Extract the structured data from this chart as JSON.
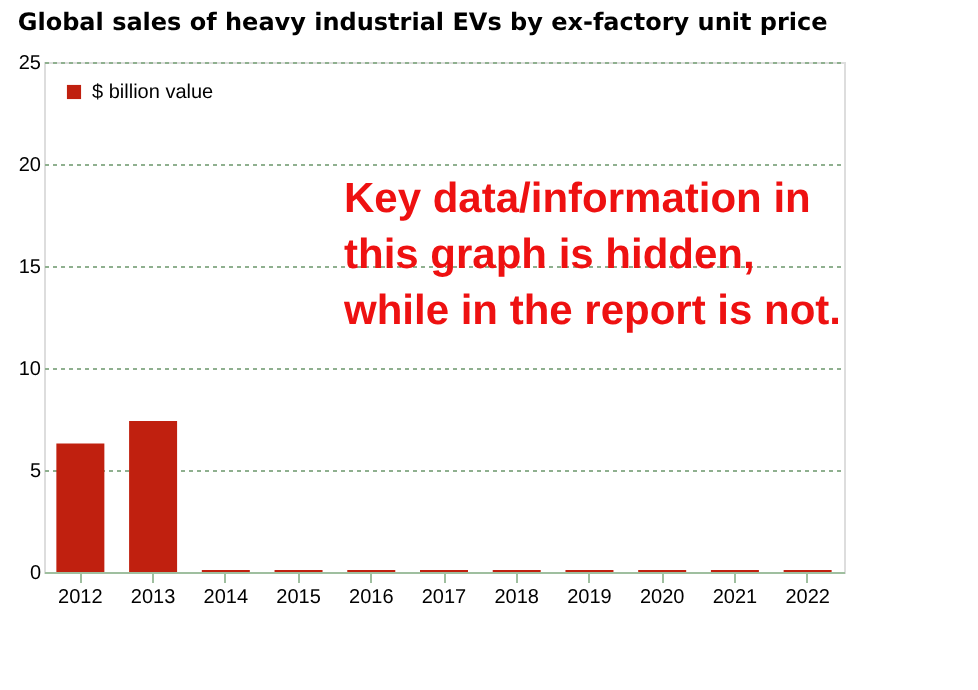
{
  "chart_data": {
    "type": "bar",
    "title": "Global sales of heavy industrial EVs by ex-factory unit price",
    "categories": [
      "2012",
      "2013",
      "2014",
      "2015",
      "2016",
      "2017",
      "2018",
      "2019",
      "2020",
      "2021",
      "2022"
    ],
    "series": [
      {
        "name": "$ billion  value",
        "color": "#c0200f",
        "values": [
          6.3,
          7.4,
          0.1,
          0.1,
          0.1,
          0.1,
          0.1,
          0.1,
          0.1,
          0.1,
          0.1
        ]
      }
    ],
    "ylim": [
      0,
      25
    ],
    "yticks": [
      0,
      5,
      10,
      15,
      20,
      25
    ],
    "grid": "y",
    "legend": "top left",
    "annotations": [
      "Key data/information in",
      "this graph is hidden,",
      "while in the report is not."
    ]
  }
}
